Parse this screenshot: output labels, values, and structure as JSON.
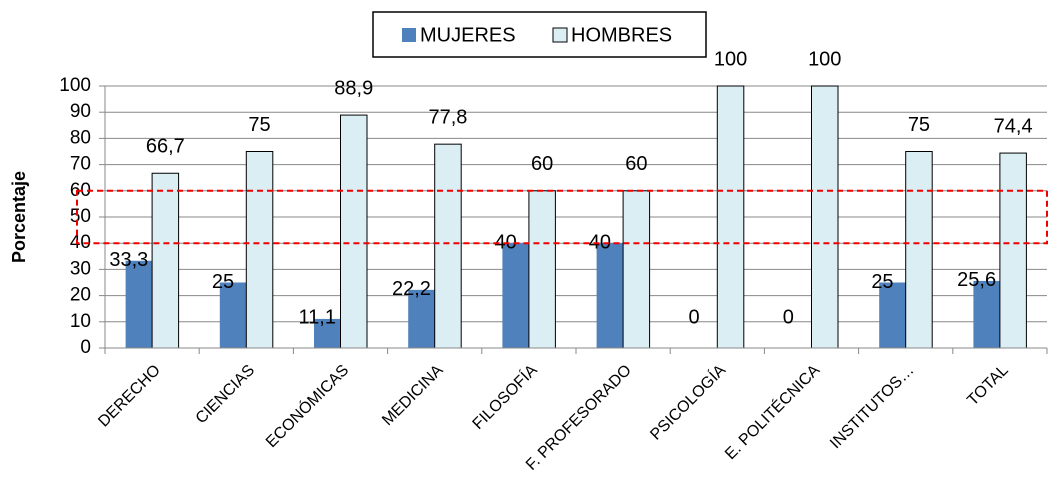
{
  "chart_data": {
    "type": "bar",
    "categories": [
      "DERECHO",
      "CIENCIAS",
      "ECONÓMICAS",
      "MEDICINA",
      "FILOSOFÍA",
      "F. PROFESORADO",
      "PSICOLOGÍA",
      "E. POLITÉCNICA",
      "INSTITUTOS…",
      "TOTAL"
    ],
    "series": [
      {
        "name": "MUJERES",
        "color": "#4f81bd",
        "values": [
          33.3,
          25,
          11.1,
          22.2,
          40,
          40,
          0,
          0,
          25,
          25.6
        ],
        "value_labels": [
          "33,3",
          "25",
          "11,1",
          "22,2",
          "40",
          "40",
          "0",
          "0",
          "25",
          "25,6"
        ]
      },
      {
        "name": "HOMBRES",
        "color": "#dbeef4",
        "values": [
          66.7,
          75,
          88.9,
          77.8,
          60,
          60,
          100,
          100,
          75,
          74.4
        ],
        "value_labels": [
          "66,7",
          "75",
          "88,9",
          "77,8",
          "60",
          "60",
          "100",
          "100",
          "75",
          "74,4"
        ]
      }
    ],
    "y_label": "Porcentaje",
    "ylim": [
      0,
      100
    ],
    "yticks": [
      0,
      10,
      20,
      30,
      40,
      50,
      60,
      70,
      80,
      90,
      100
    ],
    "grid": true,
    "legend": "top",
    "highlight_band": [
      40,
      60
    ]
  }
}
